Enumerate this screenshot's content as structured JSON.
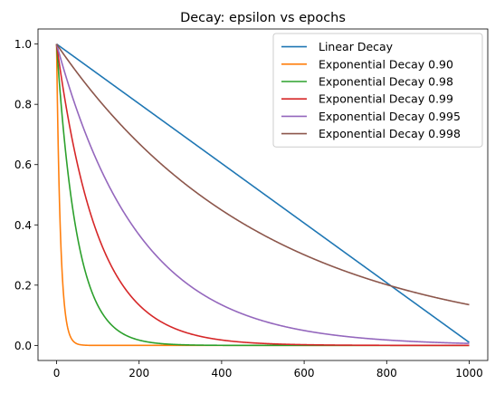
{
  "chart_data": {
    "type": "line",
    "title": "Decay: epsilon vs epochs",
    "xlabel": "",
    "ylabel": "",
    "xlim": [
      -45,
      1045
    ],
    "ylim": [
      -0.05,
      1.05
    ],
    "xticks": [
      0,
      200,
      400,
      600,
      800,
      1000
    ],
    "xtick_labels": [
      "0",
      "200",
      "400",
      "600",
      "800",
      "1000"
    ],
    "yticks": [
      0.0,
      0.2,
      0.4,
      0.6,
      0.8,
      1.0
    ],
    "ytick_labels": [
      "0.0",
      "0.2",
      "0.4",
      "0.6",
      "0.8",
      "1.0"
    ],
    "x_range": [
      0,
      1000
    ],
    "grid": false,
    "legend_position": "top-right",
    "series": [
      {
        "name": "Linear Decay",
        "kind": "linear",
        "color": "#1f77b4"
      },
      {
        "name": "Exponential Decay 0.90",
        "kind": "exponential",
        "rate": 0.9,
        "color": "#ff7f0e"
      },
      {
        "name": "Exponential Decay 0.98",
        "kind": "exponential",
        "rate": 0.98,
        "color": "#2ca02c"
      },
      {
        "name": "Exponential Decay 0.99",
        "kind": "exponential",
        "rate": 0.99,
        "color": "#d62728"
      },
      {
        "name": "Exponential Decay 0.995",
        "kind": "exponential",
        "rate": 0.995,
        "color": "#9467bd"
      },
      {
        "name": "Exponential Decay 0.998",
        "kind": "exponential",
        "rate": 0.998,
        "color": "#8c564b"
      }
    ]
  }
}
